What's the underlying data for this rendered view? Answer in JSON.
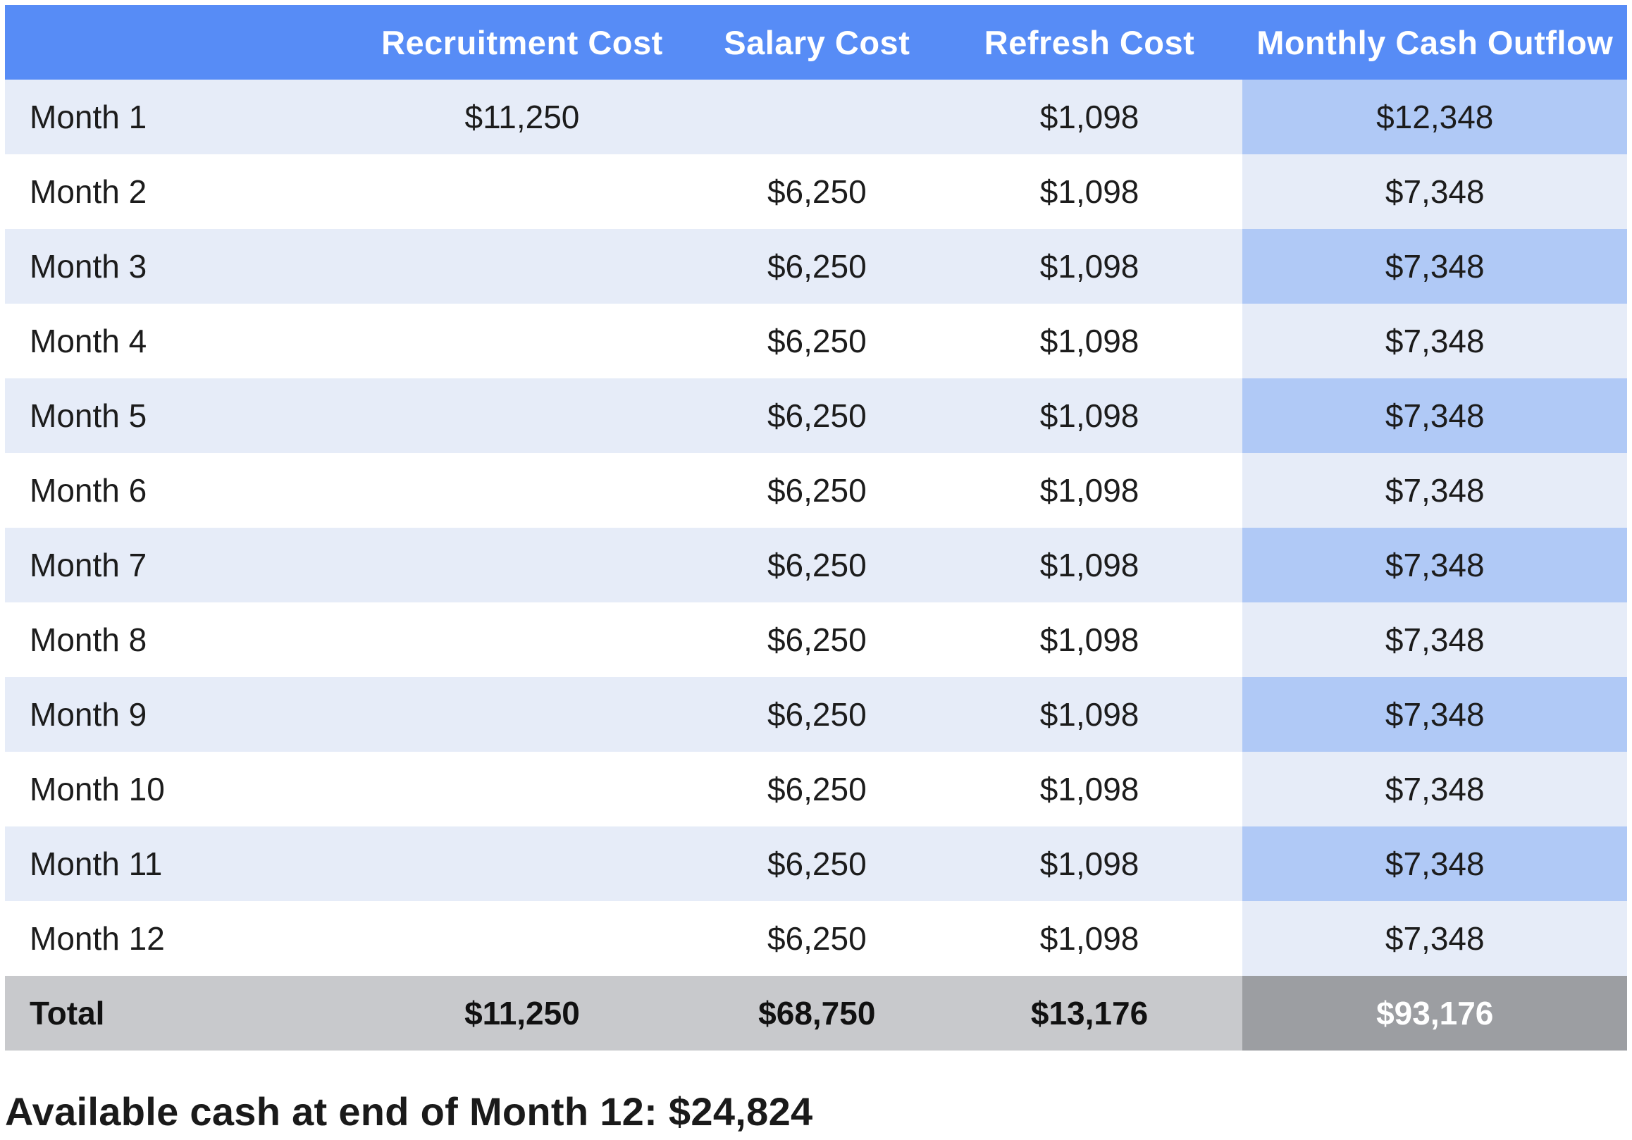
{
  "table": {
    "headers": [
      "",
      "Recruitment Cost",
      "Salary Cost",
      "Refresh Cost",
      "Monthly Cash Outflow"
    ],
    "rows": [
      [
        "Month 1",
        "$11,250",
        "",
        "$1,098",
        "$12,348"
      ],
      [
        "Month 2",
        "",
        "$6,250",
        "$1,098",
        "$7,348"
      ],
      [
        "Month 3",
        "",
        "$6,250",
        "$1,098",
        "$7,348"
      ],
      [
        "Month 4",
        "",
        "$6,250",
        "$1,098",
        "$7,348"
      ],
      [
        "Month 5",
        "",
        "$6,250",
        "$1,098",
        "$7,348"
      ],
      [
        "Month 6",
        "",
        "$6,250",
        "$1,098",
        "$7,348"
      ],
      [
        "Month 7",
        "",
        "$6,250",
        "$1,098",
        "$7,348"
      ],
      [
        "Month 8",
        "",
        "$6,250",
        "$1,098",
        "$7,348"
      ],
      [
        "Month 9",
        "",
        "$6,250",
        "$1,098",
        "$7,348"
      ],
      [
        "Month 10",
        "",
        "$6,250",
        "$1,098",
        "$7,348"
      ],
      [
        "Month 11",
        "",
        "$6,250",
        "$1,098",
        "$7,348"
      ],
      [
        "Month 12",
        "",
        "$6,250",
        "$1,098",
        "$7,348"
      ]
    ],
    "total": [
      "Total",
      "$11,250",
      "$68,750",
      "$13,176",
      "$93,176"
    ]
  },
  "footer": {
    "note": "Available cash at end of Month 12: $24,824"
  },
  "colors": {
    "header_background": "#578cf6",
    "row_band_light": "#e6ecf8",
    "outflow_highlight": "#b0c9f6",
    "total_background": "#c8c9cc",
    "total_outflow_background": "#9c9ea2"
  }
}
